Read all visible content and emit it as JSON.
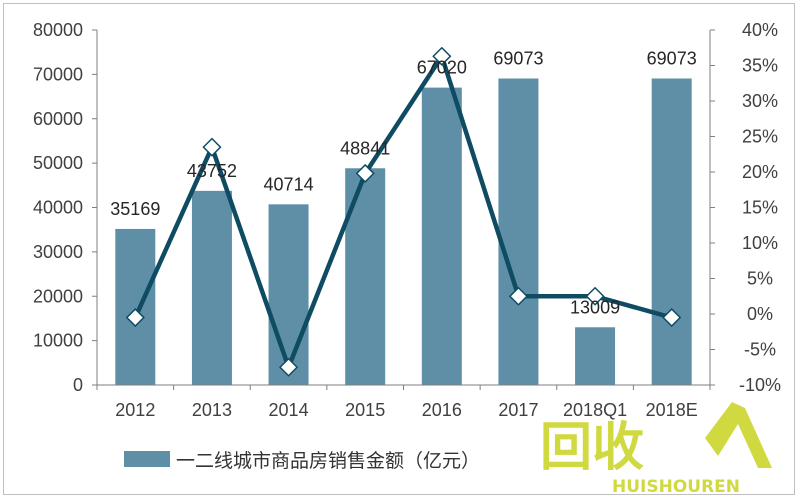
{
  "colors": {
    "bar": "#5e8fa6",
    "line": "#0f4c63",
    "marker_fill": "#ffffff",
    "axis": "#7f7f7f",
    "text": "#404040",
    "watermark_primary": "#c9d21e",
    "watermark_secondary": "#c9d21e"
  },
  "chart_data": {
    "type": "bar",
    "title": "",
    "categories": [
      "2012",
      "2013",
      "2014",
      "2015",
      "2016",
      "2017",
      "2018Q1",
      "2018E"
    ],
    "series": [
      {
        "name": "一二线城市商品房销售金额（亿元）",
        "type": "bar",
        "axis": "left",
        "values": [
          35169,
          43752,
          40714,
          48841,
          67020,
          69073,
          13009,
          69073
        ],
        "labels": [
          "35169",
          "43752",
          "40714",
          "48841",
          "67020",
          "69073",
          "13009",
          "69073"
        ]
      },
      {
        "type": "line",
        "axis": "right",
        "values": [
          -0.5,
          23.5,
          -7.5,
          19.8,
          36.3,
          2.5,
          2.5,
          -0.5
        ],
        "marker": "diamond"
      }
    ],
    "y_left": {
      "min": 0,
      "max": 80000,
      "ticks": [
        "0",
        "10000",
        "20000",
        "30000",
        "40000",
        "50000",
        "60000",
        "70000",
        "80000"
      ]
    },
    "y_right": {
      "min": -10,
      "max": 40,
      "unit": "%",
      "ticks": [
        "-10%",
        "-5%",
        "0%",
        "5%",
        "10%",
        "15%",
        "20%",
        "25%",
        "30%",
        "35%",
        "40%"
      ]
    },
    "x_tick_labels": [
      "2012",
      "2013",
      "2014",
      "2015",
      "2016",
      "2017",
      "2018Q1",
      "2018E"
    ],
    "grid": false,
    "legend": {
      "position": "bottom-left",
      "entries": [
        "一二线城市商品房销售金额（亿元）"
      ]
    }
  },
  "watermark": {
    "main": "回收",
    "sub": "HUISHOUREN"
  }
}
